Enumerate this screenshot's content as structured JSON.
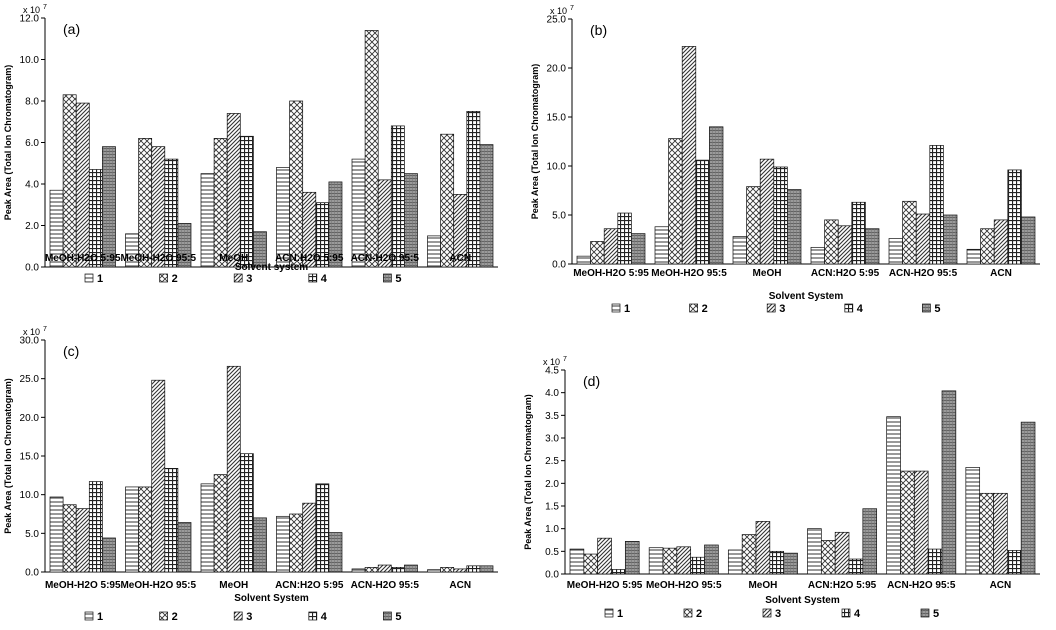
{
  "figure": {
    "patterns": [
      "hstripe",
      "crosshatch",
      "diagonal",
      "grid",
      "dense"
    ]
  },
  "chart_data": [
    {
      "type": "bar",
      "panel_label": "(a)",
      "multiplier_label": "x 10",
      "multiplier_exp": "7",
      "ylabel": "Peak Area (Total Ion Chromatogram)",
      "xlabel": "Solvent system",
      "ylim": [
        0,
        12
      ],
      "yticks": [
        "0.0",
        "2.0",
        "4.0",
        "6.0",
        "8.0",
        "10.0",
        "12.0"
      ],
      "grid": false,
      "legend_position": "bottom",
      "categories": [
        "MeOH-H2O  5:95",
        "MeOH-H2O  95:5",
        "MeOH",
        "ACN:H2O  5:95",
        "ACN-H2O  95:5",
        "ACN"
      ],
      "series": [
        {
          "name": "1",
          "values": [
            3.7,
            1.6,
            4.5,
            4.8,
            5.2,
            1.5
          ]
        },
        {
          "name": "2",
          "values": [
            8.3,
            6.2,
            6.2,
            8.0,
            11.4,
            6.4
          ]
        },
        {
          "name": "3",
          "values": [
            7.9,
            5.8,
            7.4,
            3.6,
            4.2,
            3.5
          ]
        },
        {
          "name": "4",
          "values": [
            4.7,
            5.2,
            6.3,
            3.1,
            6.8,
            7.5
          ]
        },
        {
          "name": "5",
          "values": [
            5.8,
            2.1,
            1.7,
            4.1,
            4.5,
            5.9
          ]
        }
      ]
    },
    {
      "type": "bar",
      "panel_label": "(b)",
      "multiplier_label": "x 10",
      "multiplier_exp": "7",
      "ylabel": "Peak Area (Total Ion Chromatogram)",
      "xlabel": "Solvent System",
      "ylim": [
        0,
        25
      ],
      "yticks": [
        "0.0",
        "5.0",
        "10.0",
        "15.0",
        "20.0",
        "25.0"
      ],
      "grid": false,
      "legend_position": "bottom",
      "categories": [
        "MeOH-H2O  5:95",
        "MeOH-H2O  95:5",
        "MeOH",
        "ACN:H2O  5:95",
        "ACN-H2O  95:5",
        "ACN"
      ],
      "series": [
        {
          "name": "1",
          "values": [
            0.8,
            3.8,
            2.8,
            1.7,
            2.6,
            1.5
          ]
        },
        {
          "name": "2",
          "values": [
            2.3,
            12.8,
            7.9,
            4.5,
            6.4,
            3.6
          ]
        },
        {
          "name": "3",
          "values": [
            3.6,
            22.2,
            10.7,
            3.9,
            5.1,
            4.5
          ]
        },
        {
          "name": "4",
          "values": [
            5.2,
            10.6,
            9.9,
            6.3,
            12.1,
            9.6
          ]
        },
        {
          "name": "5",
          "values": [
            3.1,
            14.0,
            7.6,
            3.6,
            5.0,
            4.8
          ]
        }
      ]
    },
    {
      "type": "bar",
      "panel_label": "(c)",
      "multiplier_label": "x 10",
      "multiplier_exp": "7",
      "ylabel": "Peak Area (Total Ion Chromatogram)",
      "xlabel": "Solvent System",
      "ylim": [
        0,
        30
      ],
      "yticks": [
        "0.0",
        "5.0",
        "10.0",
        "15.0",
        "20.0",
        "25.0",
        "30.0"
      ],
      "grid": false,
      "legend_position": "bottom",
      "categories": [
        "MeOH-H2O  5:95",
        "MeOH-H2O  95:5",
        "MeOH",
        "ACN:H2O  5:95",
        "ACN-H2O  95:5",
        "ACN"
      ],
      "series": [
        {
          "name": "1",
          "values": [
            9.7,
            11.0,
            11.4,
            7.2,
            0.4,
            0.3
          ]
        },
        {
          "name": "2",
          "values": [
            8.7,
            11.0,
            12.6,
            7.5,
            0.6,
            0.6
          ]
        },
        {
          "name": "3",
          "values": [
            8.2,
            24.8,
            26.6,
            8.9,
            0.9,
            0.4
          ]
        },
        {
          "name": "4",
          "values": [
            11.7,
            13.4,
            15.3,
            11.4,
            0.6,
            0.8
          ]
        },
        {
          "name": "5",
          "values": [
            4.4,
            6.4,
            7.0,
            5.1,
            0.9,
            0.8
          ]
        }
      ]
    },
    {
      "type": "bar",
      "panel_label": "(d)",
      "multiplier_label": "x 10",
      "multiplier_exp": "7",
      "ylabel": "Peak Area (Total Ion Chromatogram)",
      "xlabel": "Solvent System",
      "ylim": [
        0,
        4.5
      ],
      "yticks": [
        "0.0",
        "0.5",
        "1.0",
        "1.5",
        "2.0",
        "2.5",
        "3.0",
        "3.5",
        "4.0",
        "4.5"
      ],
      "grid": false,
      "legend_position": "bottom",
      "categories": [
        "MeOH-H2O  5:95",
        "MeOH-H2O  95:5",
        "MeOH",
        "ACN:H2O  5:95",
        "ACN-H2O  95:5",
        "ACN"
      ],
      "series": [
        {
          "name": "1",
          "values": [
            0.55,
            0.58,
            0.53,
            1.0,
            3.47,
            2.35
          ]
        },
        {
          "name": "2",
          "values": [
            0.44,
            0.57,
            0.87,
            0.74,
            2.27,
            1.78
          ]
        },
        {
          "name": "3",
          "values": [
            0.79,
            0.6,
            1.16,
            0.92,
            2.27,
            1.78
          ]
        },
        {
          "name": "4",
          "values": [
            0.1,
            0.37,
            0.5,
            0.33,
            0.55,
            0.52
          ]
        },
        {
          "name": "5",
          "values": [
            0.72,
            0.64,
            0.46,
            1.44,
            4.04,
            3.35
          ]
        }
      ]
    }
  ]
}
